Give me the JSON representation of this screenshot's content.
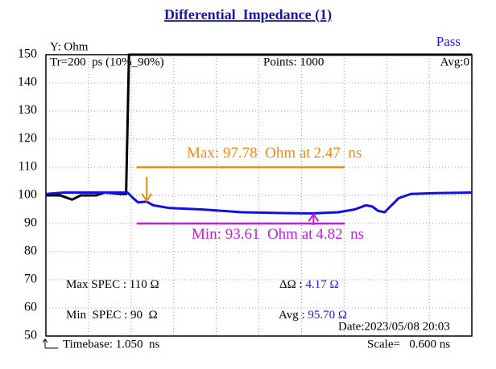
{
  "chart_data": {
    "type": "line",
    "title": "Differential  Impedance (1)",
    "y_label": "Y: Ohm",
    "status": "Pass",
    "info": {
      "rise_time": "Tr=200  ps (10%_90%)",
      "points": "Points: 1000",
      "average": "Avg:0",
      "date": "Date:2023/05/08 20:03",
      "timebase": "Timebase: 1.050  ns",
      "scale": "Scale=   0.600 ns"
    },
    "xlim": [
      1.05,
      7.05
    ],
    "ylim": [
      50,
      150
    ],
    "yticks": [
      50,
      60,
      70,
      80,
      90,
      100,
      110,
      120,
      130,
      140,
      150
    ],
    "grid": true,
    "series": [
      {
        "color": "#000000",
        "x": [
          1.05,
          1.25,
          1.42,
          1.54,
          1.76,
          1.88,
          2.1,
          2.18,
          2.22,
          7.05
        ],
        "values": [
          100,
          100,
          98.5,
          100,
          100,
          101,
          100.5,
          100.5,
          150,
          150
        ]
      },
      {
        "color": "#1010e0",
        "x": [
          1.05,
          1.31,
          1.54,
          1.76,
          1.99,
          2.2,
          2.28,
          2.35,
          2.47,
          2.56,
          2.79,
          3.24,
          3.81,
          4.37,
          4.82,
          5.17,
          5.4,
          5.56,
          5.65,
          5.73,
          5.82,
          5.9,
          6.02,
          6.19,
          6.53,
          7.05
        ],
        "values": [
          100.5,
          101,
          101,
          101,
          101,
          101,
          99,
          97.5,
          97.78,
          96.5,
          95.5,
          95,
          94,
          93.7,
          93.61,
          94,
          95,
          96.5,
          96,
          94.5,
          94,
          96,
          99,
          100.5,
          100.8,
          101
        ]
      }
    ],
    "markers": [
      {
        "label": "Max:",
        "value": 97.78,
        "unit": "Ohm at",
        "x": 2.47,
        "x_unit": "ns",
        "color": "#f08a10"
      },
      {
        "label": "Min:",
        "value": 93.61,
        "unit": "Ohm at",
        "x": 4.82,
        "x_unit": "ns",
        "color": "#c020e0"
      }
    ],
    "specs": [
      {
        "label": "Max SPEC :",
        "value": 110,
        "value_label": "110 Ω",
        "color": "#f08a10"
      },
      {
        "label": "Min  SPEC :",
        "value": 90,
        "value_label": "90  Ω",
        "color": "#c020e0"
      }
    ],
    "readouts": [
      {
        "label": "ΔΩ :",
        "value": 4.17,
        "value_label": "4.17 Ω"
      },
      {
        "label": "Avg :",
        "value": 95.7,
        "value_label": "95.70 Ω"
      }
    ]
  }
}
